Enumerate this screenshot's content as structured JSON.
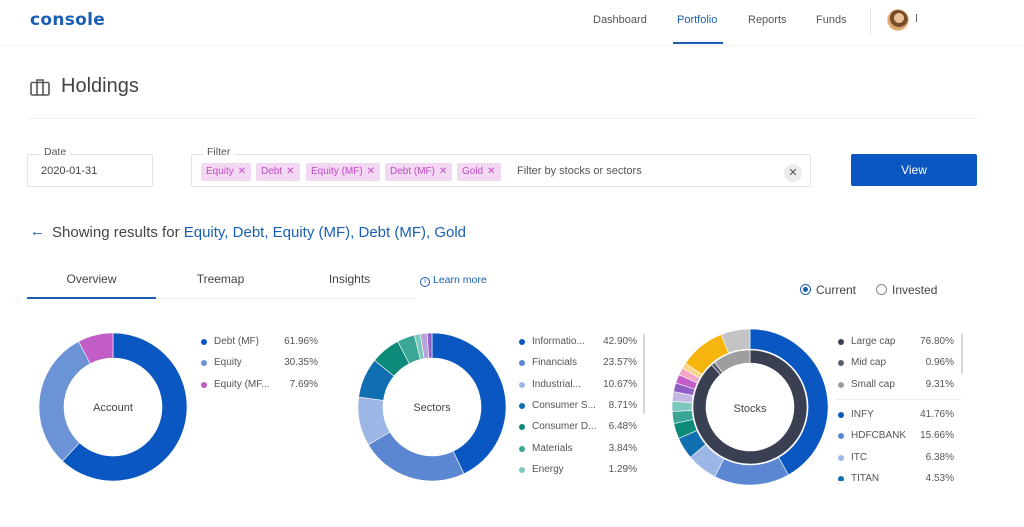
{
  "header": {
    "logo": "console",
    "nav": [
      {
        "label": "Dashboard",
        "active": false
      },
      {
        "label": "Portfolio",
        "active": true
      },
      {
        "label": "Reports",
        "active": false
      },
      {
        "label": "Funds",
        "active": false
      }
    ],
    "icons": {
      "avatar": "user-avatar"
    }
  },
  "page": {
    "title": "Holdings",
    "title_icon": "briefcase-icon"
  },
  "controls": {
    "date_label": "Date",
    "date_value": "2020-01-31",
    "filter_label": "Filter",
    "chips": [
      "Equity",
      "Debt",
      "Equity (MF)",
      "Debt (MF)",
      "Gold"
    ],
    "filter_placeholder": "Filter by stocks or sectors",
    "view_label": "View"
  },
  "results": {
    "prefix": "Showing results for",
    "selected": "Equity, Debt, Equity (MF), Debt (MF), Gold"
  },
  "tabs": [
    {
      "label": "Overview",
      "active": true
    },
    {
      "label": "Treemap",
      "active": false
    },
    {
      "label": "Insights",
      "active": false
    }
  ],
  "learn_more": "Learn more",
  "view_mode": {
    "options": [
      {
        "label": "Current",
        "selected": true
      },
      {
        "label": "Invested",
        "selected": false
      }
    ]
  },
  "colors": {
    "accent": "#1a5fb4",
    "chip_text": "#c04bc4",
    "chip_bg": "#f3d8f3",
    "button": "#0a57c2"
  },
  "chart_data": [
    {
      "type": "pie",
      "center_label": "Account",
      "series": [
        {
          "name": "Debt (MF)",
          "value": 61.96,
          "display": "61.96%",
          "color": "#0a57c2"
        },
        {
          "name": "Equity",
          "value": 30.35,
          "display": "30.35%",
          "color": "#6b93d6"
        },
        {
          "name": "Equity (MF...",
          "value": 7.69,
          "display": "7.69%",
          "color": "#c25dc8"
        }
      ]
    },
    {
      "type": "pie",
      "center_label": "Sectors",
      "series": [
        {
          "name": "Informatio...",
          "value": 42.9,
          "display": "42.90%",
          "color": "#0a57c2"
        },
        {
          "name": "Financials",
          "value": 23.57,
          "display": "23.57%",
          "color": "#5a86d2"
        },
        {
          "name": "Industrial...",
          "value": 10.67,
          "display": "10.67%",
          "color": "#9cb6e6"
        },
        {
          "name": "Consumer S...",
          "value": 8.71,
          "display": "8.71%",
          "color": "#0f6fb0"
        },
        {
          "name": "Consumer D...",
          "value": 6.48,
          "display": "6.48%",
          "color": "#0e8a7a"
        },
        {
          "name": "Materials",
          "value": 3.84,
          "display": "3.84%",
          "color": "#3aa796"
        },
        {
          "name": "Energy",
          "value": 1.29,
          "display": "1.29%",
          "color": "#7cc8bc"
        },
        {
          "name": "",
          "value": 1.5,
          "display": "",
          "color": "#b7a2d9"
        },
        {
          "name": "",
          "value": 1.04,
          "display": "",
          "color": "#8f5fc7"
        }
      ]
    },
    {
      "type": "pie",
      "center_label": "Stocks",
      "inner_series": [
        {
          "name": "Large cap",
          "value": 76.8,
          "display": "76.80%",
          "color": "#3b3f52"
        },
        {
          "name": "Mid cap",
          "value": 0.96,
          "display": "0.96%",
          "color": "#5a5f70"
        },
        {
          "name": "Small cap",
          "value": 9.31,
          "display": "9.31%",
          "color": "#9e9e9e"
        }
      ],
      "series": [
        {
          "name": "INFY",
          "value": 41.76,
          "display": "41.76%",
          "color": "#0a57c2"
        },
        {
          "name": "HDFCBANK",
          "value": 15.66,
          "display": "15.66%",
          "color": "#5a86d2"
        },
        {
          "name": "ITC",
          "value": 6.38,
          "display": "6.38%",
          "color": "#9cb6e6"
        },
        {
          "name": "TITAN",
          "value": 4.53,
          "display": "4.53%",
          "color": "#0f6fb0"
        },
        {
          "name": "",
          "value": 3.2,
          "display": "",
          "color": "#0e8a7a"
        },
        {
          "name": "",
          "value": 2.5,
          "display": "",
          "color": "#3aa796"
        },
        {
          "name": "",
          "value": 2.1,
          "display": "",
          "color": "#7cc8bc"
        },
        {
          "name": "",
          "value": 2.0,
          "display": "",
          "color": "#c5b6e6"
        },
        {
          "name": "",
          "value": 1.8,
          "display": "",
          "color": "#8f5fc7"
        },
        {
          "name": "",
          "value": 1.8,
          "display": "",
          "color": "#c25dc8"
        },
        {
          "name": "",
          "value": 1.5,
          "display": "",
          "color": "#f3a6c6"
        },
        {
          "name": "",
          "value": 1.2,
          "display": "",
          "color": "#f6d68a"
        },
        {
          "name": "",
          "value": 9.5,
          "display": "",
          "color": "#f5b50e"
        },
        {
          "name": "",
          "value": 6.0,
          "display": "",
          "color": "#c4c4c4"
        }
      ]
    }
  ]
}
